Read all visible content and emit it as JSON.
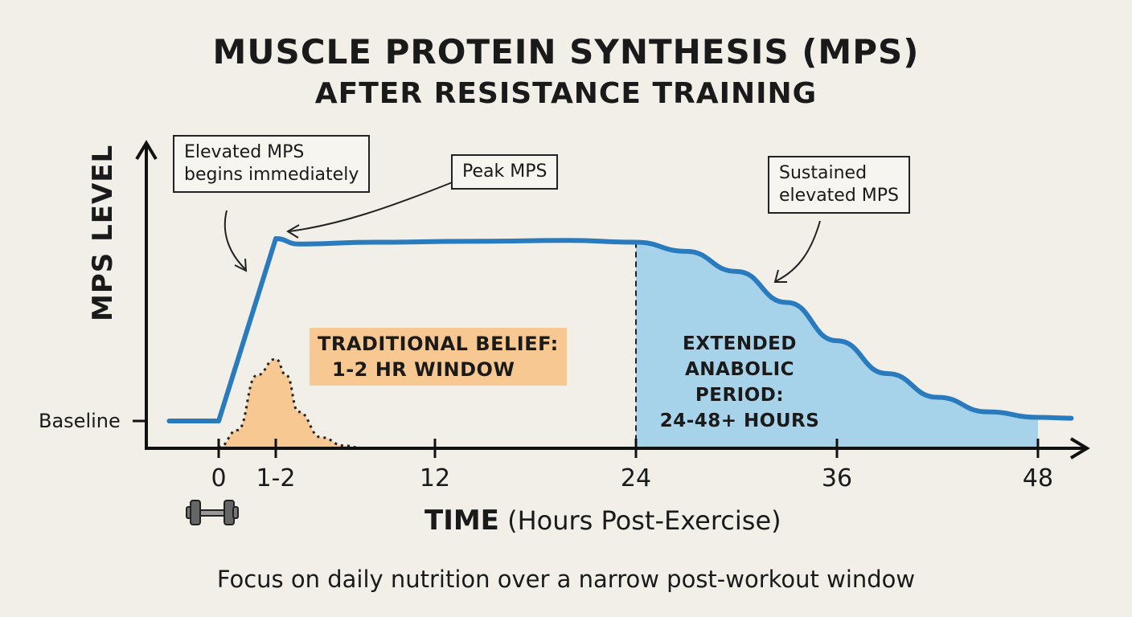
{
  "title": "MUSCLE PROTEIN SYNTHESIS (MPS)",
  "subtitle": "AFTER RESISTANCE TRAINING",
  "footer": "Focus on daily nutrition over a narrow post-workout window",
  "colors": {
    "mps_line": "#2a7bbd",
    "extended_fill": "#a6d2ea",
    "traditional_fill": "#f8c892",
    "background": "#f1efe8"
  },
  "chart_data": {
    "type": "line",
    "title": "MUSCLE PROTEIN SYNTHESIS (MPS) AFTER RESISTANCE TRAINING",
    "xlabel_main": "TIME",
    "xlabel_sub": "(Hours Post-Exercise)",
    "ylabel": "MPS LEVEL",
    "y_baseline_label": "Baseline",
    "x_ticks": [
      {
        "label": "0",
        "value": 0
      },
      {
        "label": "1-2",
        "value": 1.5
      },
      {
        "label": "12",
        "value": 12
      },
      {
        "label": "24",
        "value": 24
      },
      {
        "label": "36",
        "value": 36
      },
      {
        "label": "48",
        "value": 48
      }
    ],
    "series": [
      {
        "name": "MPS",
        "points": [
          [
            -1.6,
            0
          ],
          [
            0,
            0
          ],
          [
            1.5,
            1
          ],
          [
            3,
            0.97
          ],
          [
            8,
            0.98
          ],
          [
            14,
            0.985
          ],
          [
            20,
            0.99
          ],
          [
            24,
            0.98
          ],
          [
            27,
            0.93
          ],
          [
            30,
            0.82
          ],
          [
            33,
            0.65
          ],
          [
            36,
            0.44
          ],
          [
            39,
            0.26
          ],
          [
            42,
            0.13
          ],
          [
            45,
            0.05
          ],
          [
            48,
            0.02
          ],
          [
            50,
            0.015
          ]
        ]
      },
      {
        "name": "Traditional belief",
        "points": [
          [
            0,
            -0.145
          ],
          [
            0.5,
            -0.05
          ],
          [
            1,
            0.25
          ],
          [
            1.5,
            0.34
          ],
          [
            2.2,
            0.25
          ],
          [
            3,
            0.05
          ],
          [
            4.5,
            -0.09
          ],
          [
            6,
            -0.135
          ],
          [
            7,
            -0.145
          ]
        ]
      }
    ],
    "shaded_region": {
      "name": "Extended anabolic period",
      "x_start": 24,
      "x_end": 48
    },
    "annotations": {
      "elevated": "Elevated MPS\nbegins immediately",
      "peak": "Peak MPS",
      "sustained": "Sustained\nelevated MPS",
      "traditional": [
        "TRADITIONAL BELIEF:",
        "1-2 HR WINDOW"
      ],
      "extended": [
        "EXTENDED",
        "ANABOLIC PERIOD:",
        "24-48+ HOURS"
      ]
    }
  },
  "icons": {
    "exercise": "dumbbell-icon"
  }
}
